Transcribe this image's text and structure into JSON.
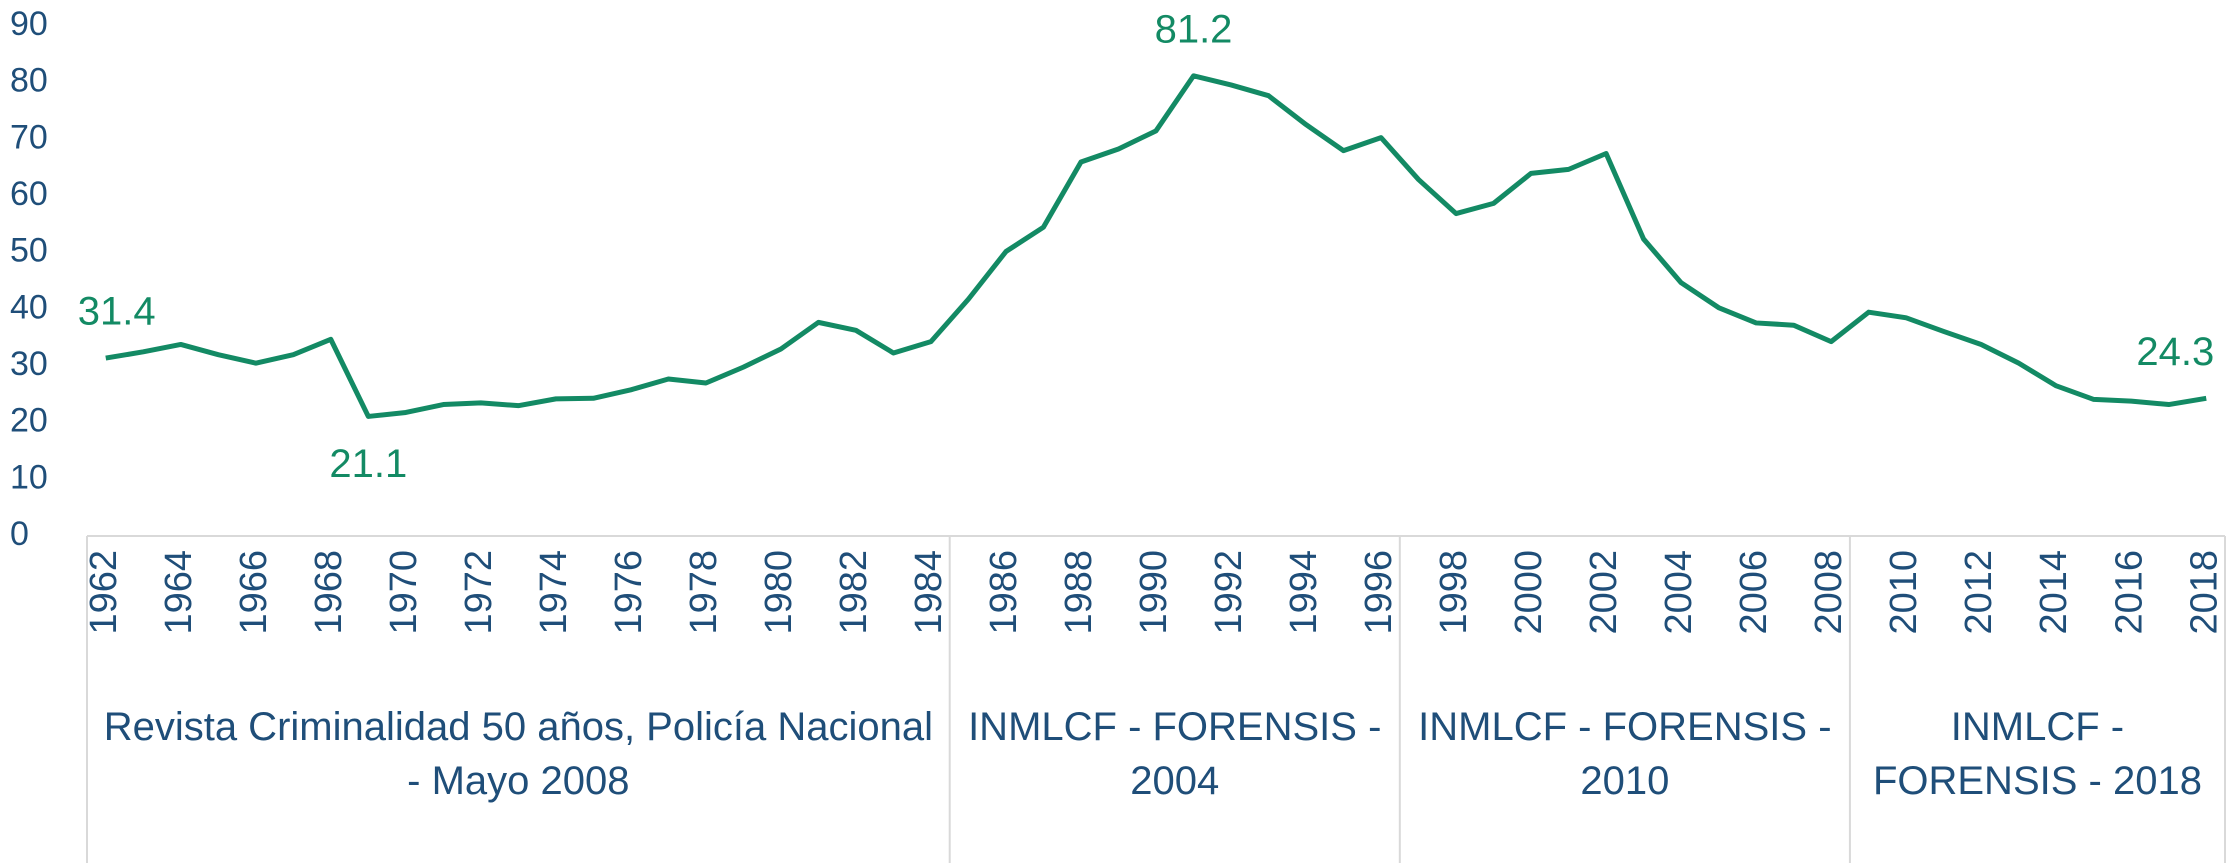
{
  "chart_data": {
    "type": "line",
    "x": [
      1962,
      1963,
      1964,
      1965,
      1966,
      1967,
      1968,
      1969,
      1970,
      1971,
      1972,
      1973,
      1974,
      1975,
      1976,
      1977,
      1978,
      1979,
      1980,
      1981,
      1982,
      1983,
      1984,
      1985,
      1986,
      1987,
      1988,
      1989,
      1990,
      1991,
      1992,
      1993,
      1994,
      1995,
      1996,
      1997,
      1998,
      1999,
      2000,
      2001,
      2002,
      2003,
      2004,
      2005,
      2006,
      2007,
      2008,
      2009,
      2010,
      2011,
      2012,
      2013,
      2014,
      2015,
      2016,
      2017,
      2018
    ],
    "series": [
      {
        "color": "#138a64",
        "values": [
          31.4,
          32.5,
          33.8,
          32,
          30.5,
          32,
          34.7,
          21.1,
          21.8,
          23.2,
          23.5,
          23,
          24.2,
          24.3,
          25.8,
          27.7,
          27,
          29.8,
          33,
          37.7,
          36.3,
          32.3,
          34.3,
          41.8,
          50.2,
          54.5,
          66,
          68.3,
          71.5,
          81.2,
          79.6,
          77.7,
          72.6,
          68,
          70.3,
          62.9,
          56.9,
          58.7,
          64,
          64.7,
          67.5,
          52.4,
          44.7,
          40.3,
          37.6,
          37.2,
          34.3,
          39.5,
          38.5,
          36.1,
          33.8,
          30.5,
          26.5,
          24.1,
          23.8,
          23.2,
          24.3
        ]
      }
    ],
    "labeled_x": [
      1962,
      1969,
      1991,
      2018
    ],
    "xlim": [
      1961.5,
      2018.5
    ],
    "xticks": [
      1962,
      1964,
      1966,
      1968,
      1970,
      1972,
      1974,
      1976,
      1978,
      1980,
      1982,
      1984,
      1986,
      1988,
      1990,
      1992,
      1994,
      1996,
      1998,
      2000,
      2002,
      2004,
      2006,
      2008,
      2010,
      2012,
      2014,
      2016,
      2018
    ],
    "ylim": [
      0,
      90
    ],
    "yticks": [
      0,
      10,
      20,
      30,
      40,
      50,
      60,
      70,
      80,
      90
    ],
    "groups": [
      {
        "label": "Revista Criminalidad 50 años, Policía Nacional - Mayo 2008",
        "start": 1962,
        "end": 1984
      },
      {
        "label": "INMLCF - FORENSIS - 2004",
        "start": 1985,
        "end": 1996
      },
      {
        "label": "INMLCF - FORENSIS - 2010",
        "start": 1997,
        "end": 2008
      },
      {
        "label": "INMLCF - FORENSIS - 2018",
        "start": 2009,
        "end": 2018
      }
    ]
  }
}
